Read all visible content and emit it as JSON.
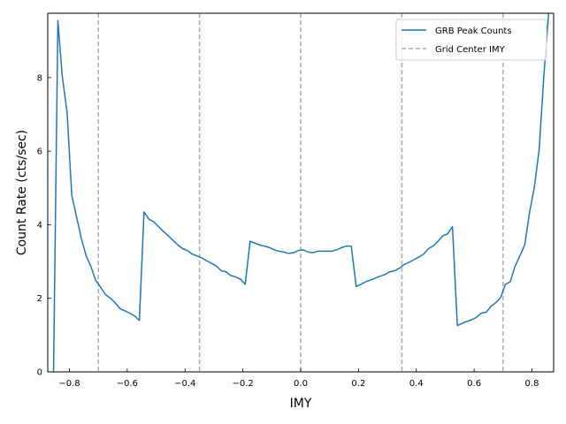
{
  "chart_data": {
    "type": "line",
    "xlabel": "IMY",
    "ylabel": "Count Rate (cts/sec)",
    "xlim": [
      -0.875,
      0.875
    ],
    "ylim": [
      0,
      9.75
    ],
    "xticks": [
      -0.8,
      -0.6,
      -0.4,
      -0.2,
      0.0,
      0.2,
      0.4,
      0.6,
      0.8
    ],
    "xtick_labels": [
      "−0.8",
      "−0.6",
      "−0.4",
      "−0.2",
      "0.0",
      "0.2",
      "0.4",
      "0.6",
      "0.8"
    ],
    "yticks": [
      0,
      2,
      4,
      6,
      8
    ],
    "ytick_labels": [
      "0",
      "2",
      "4",
      "6",
      "8"
    ],
    "grid": false,
    "legend_position": "top-right",
    "series": [
      {
        "name": "GRB Peak Counts",
        "color": "#1f77b4",
        "style": "solid",
        "points": [
          [
            -0.855,
            0.0
          ],
          [
            -0.84,
            9.55
          ],
          [
            -0.825,
            8.05
          ],
          [
            -0.808,
            7.05
          ],
          [
            -0.792,
            4.8
          ],
          [
            -0.775,
            4.2
          ],
          [
            -0.758,
            3.6
          ],
          [
            -0.742,
            3.15
          ],
          [
            -0.725,
            2.85
          ],
          [
            -0.71,
            2.5
          ],
          [
            -0.692,
            2.3
          ],
          [
            -0.675,
            2.1
          ],
          [
            -0.658,
            2.0
          ],
          [
            -0.642,
            1.88
          ],
          [
            -0.625,
            1.72
          ],
          [
            -0.608,
            1.66
          ],
          [
            -0.592,
            1.6
          ],
          [
            -0.575,
            1.52
          ],
          [
            -0.558,
            1.4
          ],
          [
            -0.542,
            4.35
          ],
          [
            -0.525,
            4.15
          ],
          [
            -0.508,
            4.08
          ],
          [
            -0.492,
            3.95
          ],
          [
            -0.475,
            3.82
          ],
          [
            -0.458,
            3.7
          ],
          [
            -0.442,
            3.58
          ],
          [
            -0.425,
            3.45
          ],
          [
            -0.408,
            3.35
          ],
          [
            -0.392,
            3.3
          ],
          [
            -0.375,
            3.2
          ],
          [
            -0.358,
            3.15
          ],
          [
            -0.342,
            3.1
          ],
          [
            -0.325,
            3.02
          ],
          [
            -0.308,
            2.95
          ],
          [
            -0.292,
            2.88
          ],
          [
            -0.275,
            2.75
          ],
          [
            -0.258,
            2.72
          ],
          [
            -0.242,
            2.62
          ],
          [
            -0.225,
            2.58
          ],
          [
            -0.208,
            2.52
          ],
          [
            -0.192,
            2.38
          ],
          [
            -0.175,
            3.55
          ],
          [
            -0.158,
            3.5
          ],
          [
            -0.142,
            3.45
          ],
          [
            -0.125,
            3.42
          ],
          [
            -0.108,
            3.38
          ],
          [
            -0.092,
            3.32
          ],
          [
            -0.075,
            3.28
          ],
          [
            -0.058,
            3.26
          ],
          [
            -0.042,
            3.22
          ],
          [
            -0.025,
            3.24
          ],
          [
            -0.008,
            3.3
          ],
          [
            0.008,
            3.32
          ],
          [
            0.025,
            3.26
          ],
          [
            0.042,
            3.24
          ],
          [
            0.058,
            3.28
          ],
          [
            0.075,
            3.28
          ],
          [
            0.092,
            3.28
          ],
          [
            0.108,
            3.28
          ],
          [
            0.125,
            3.32
          ],
          [
            0.142,
            3.38
          ],
          [
            0.158,
            3.42
          ],
          [
            0.175,
            3.42
          ],
          [
            0.192,
            2.32
          ],
          [
            0.208,
            2.38
          ],
          [
            0.225,
            2.45
          ],
          [
            0.242,
            2.5
          ],
          [
            0.258,
            2.55
          ],
          [
            0.275,
            2.6
          ],
          [
            0.292,
            2.65
          ],
          [
            0.308,
            2.72
          ],
          [
            0.325,
            2.75
          ],
          [
            0.342,
            2.82
          ],
          [
            0.358,
            2.92
          ],
          [
            0.375,
            2.98
          ],
          [
            0.392,
            3.05
          ],
          [
            0.408,
            3.12
          ],
          [
            0.425,
            3.2
          ],
          [
            0.442,
            3.35
          ],
          [
            0.458,
            3.42
          ],
          [
            0.475,
            3.55
          ],
          [
            0.492,
            3.7
          ],
          [
            0.508,
            3.75
          ],
          [
            0.525,
            3.95
          ],
          [
            0.542,
            1.26
          ],
          [
            0.558,
            1.32
          ],
          [
            0.575,
            1.37
          ],
          [
            0.592,
            1.42
          ],
          [
            0.608,
            1.48
          ],
          [
            0.625,
            1.6
          ],
          [
            0.642,
            1.62
          ],
          [
            0.658,
            1.78
          ],
          [
            0.675,
            1.88
          ],
          [
            0.692,
            2.02
          ],
          [
            0.708,
            2.38
          ],
          [
            0.725,
            2.45
          ],
          [
            0.742,
            2.88
          ],
          [
            0.758,
            3.15
          ],
          [
            0.775,
            3.45
          ],
          [
            0.792,
            4.35
          ],
          [
            0.808,
            5.0
          ],
          [
            0.825,
            6.05
          ],
          [
            0.842,
            8.15
          ],
          [
            0.858,
            9.75
          ]
        ]
      },
      {
        "name": "Grid Center IMY",
        "color": "#aaaaaa",
        "style": "dashed",
        "vlines": [
          -0.7,
          -0.35,
          0.0,
          0.35,
          0.7
        ]
      }
    ]
  }
}
